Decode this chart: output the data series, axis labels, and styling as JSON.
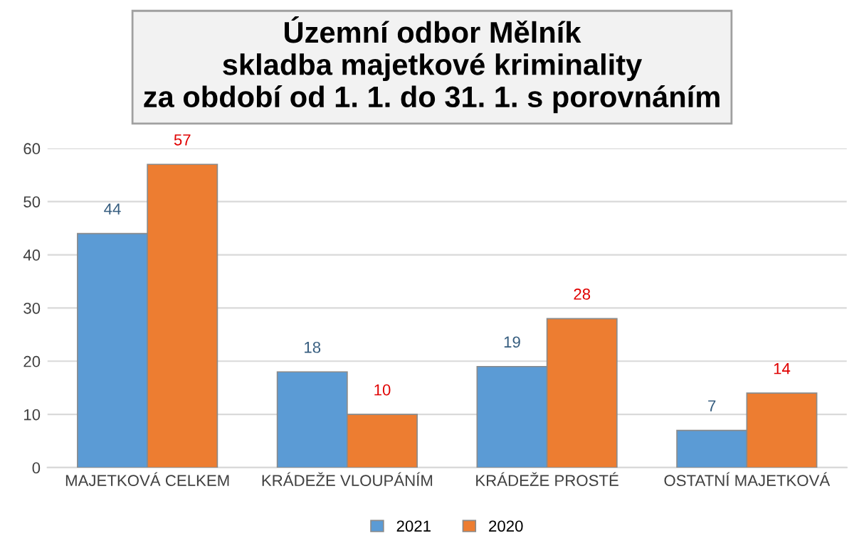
{
  "chart_data": {
    "type": "bar",
    "title": "Územní odbor Mělník\nskladba majetkové kriminality\nza období od 1. 1. do 31. 1. s porovnáním",
    "categories": [
      "MAJETKOVÁ CELKEM",
      "KRÁDEŽE VLOUPÁNÍM",
      "KRÁDEŽE PROSTÉ",
      "OSTATNÍ MAJETKOVÁ"
    ],
    "series": [
      {
        "name": "2021",
        "color": "#5b9bd5",
        "values": [
          44,
          18,
          19,
          7
        ]
      },
      {
        "name": "2020",
        "color": "#ed7d31",
        "values": [
          57,
          10,
          28,
          14
        ]
      }
    ],
    "ylim": [
      0,
      60
    ],
    "yticks": [
      0,
      10,
      20,
      30,
      40,
      50,
      60
    ],
    "grid": "y",
    "legend": "bottom",
    "data_labels": true
  }
}
